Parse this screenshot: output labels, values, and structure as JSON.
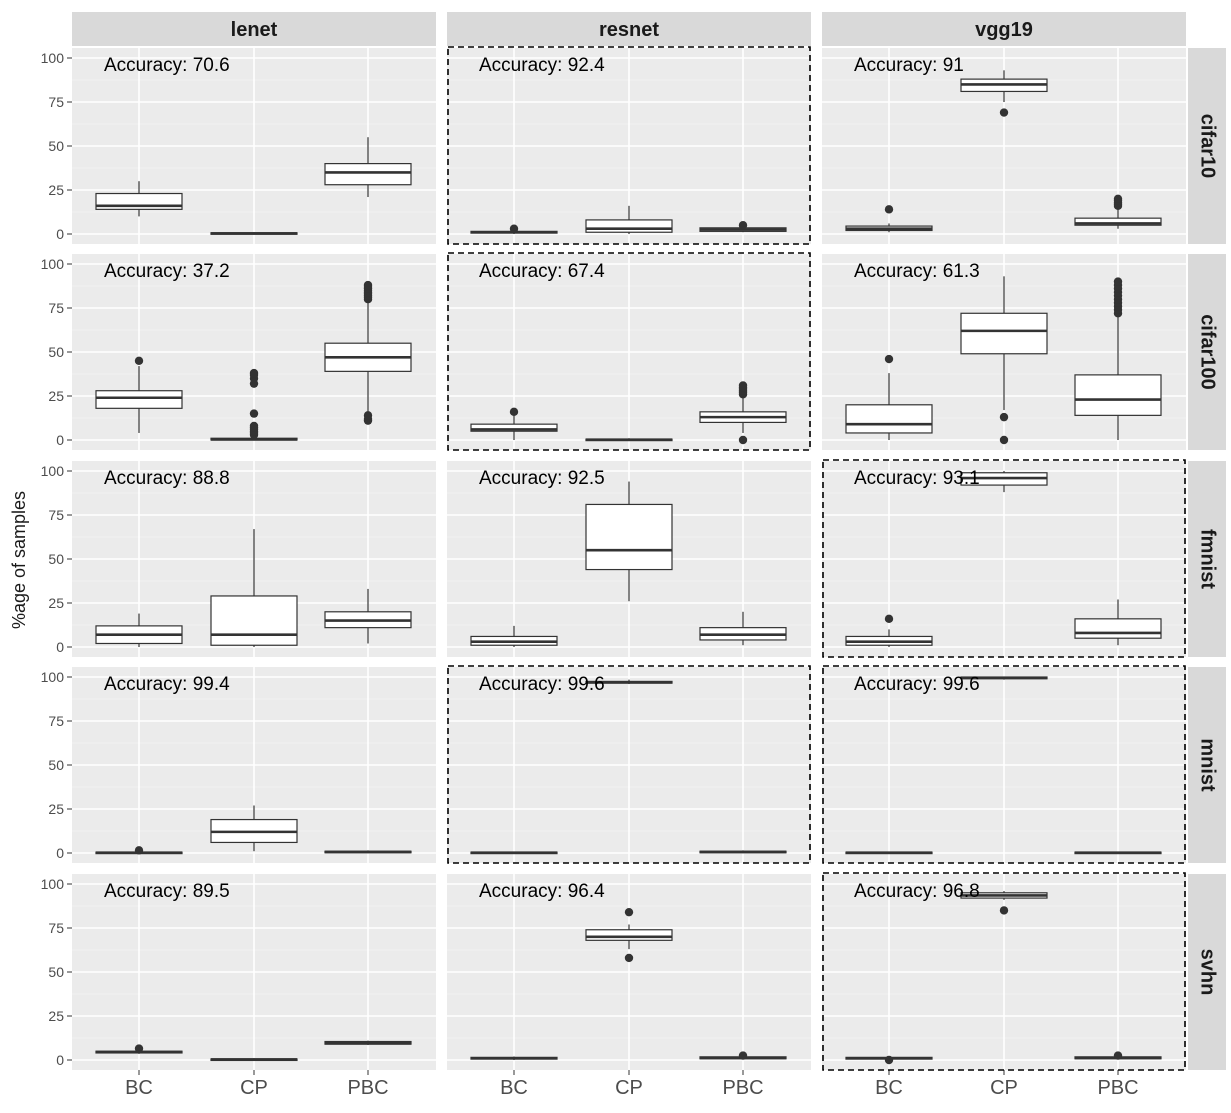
{
  "chart_data": {
    "type": "box",
    "title": "",
    "xlabel": "",
    "ylabel": "%age of samples",
    "ylim": [
      0,
      100
    ],
    "yticks": [
      "0",
      "25",
      "50",
      "75",
      "100"
    ],
    "grid": true,
    "columns": [
      "lenet",
      "resnet",
      "vgg19"
    ],
    "rows": [
      "cifar10",
      "cifar100",
      "fmnist",
      "mnist",
      "svhn"
    ],
    "categories": [
      "BC",
      "CP",
      "PBC"
    ],
    "panels": [
      {
        "row": "cifar10",
        "col": "lenet",
        "accuracy": "Accuracy: 70.6",
        "highlighted": false,
        "boxes": [
          {
            "q1": 14,
            "median": 16,
            "q3": 23,
            "low": 10,
            "high": 30,
            "outliers": []
          },
          {
            "q1": 0,
            "median": 0.3,
            "q3": 0.7,
            "low": 0,
            "high": 1,
            "outliers": []
          },
          {
            "q1": 28,
            "median": 35,
            "q3": 40,
            "low": 21,
            "high": 55,
            "outliers": []
          }
        ]
      },
      {
        "row": "cifar10",
        "col": "resnet",
        "accuracy": "Accuracy: 92.4",
        "highlighted": true,
        "boxes": [
          {
            "q1": 0.5,
            "median": 1,
            "q3": 1.5,
            "low": 0,
            "high": 2.5,
            "outliers": [
              3
            ]
          },
          {
            "q1": 1,
            "median": 3,
            "q3": 8,
            "low": 0,
            "high": 16,
            "outliers": []
          },
          {
            "q1": 1.5,
            "median": 2.5,
            "q3": 3.5,
            "low": 1,
            "high": 4.5,
            "outliers": [
              5
            ]
          }
        ]
      },
      {
        "row": "cifar10",
        "col": "vgg19",
        "accuracy": "Accuracy: 91",
        "highlighted": false,
        "boxes": [
          {
            "q1": 2,
            "median": 3,
            "q3": 4.5,
            "low": 1,
            "high": 6,
            "outliers": [
              14
            ]
          },
          {
            "q1": 81,
            "median": 85,
            "q3": 88,
            "low": 75,
            "high": 93,
            "outliers": [
              69
            ]
          },
          {
            "q1": 5,
            "median": 6,
            "q3": 9,
            "low": 3,
            "high": 14,
            "outliers": [
              16,
              17,
              18,
              19,
              20
            ]
          }
        ]
      },
      {
        "row": "cifar100",
        "col": "lenet",
        "accuracy": "Accuracy: 37.2",
        "highlighted": false,
        "boxes": [
          {
            "q1": 18,
            "median": 24,
            "q3": 28,
            "low": 4,
            "high": 42,
            "outliers": [
              45
            ]
          },
          {
            "q1": 0,
            "median": 0.3,
            "q3": 1,
            "low": 0,
            "high": 2,
            "outliers": [
              3,
              4,
              5,
              6,
              7,
              8,
              15,
              32,
              35,
              37,
              38
            ]
          },
          {
            "q1": 39,
            "median": 47,
            "q3": 55,
            "low": 16,
            "high": 79,
            "outliers": [
              11,
              12,
              14,
              80,
              81,
              82,
              83,
              84,
              85,
              86,
              87,
              88
            ]
          }
        ]
      },
      {
        "row": "cifar100",
        "col": "resnet",
        "accuracy": "Accuracy: 67.4",
        "highlighted": true,
        "boxes": [
          {
            "q1": 5,
            "median": 6,
            "q3": 9,
            "low": 0,
            "high": 14,
            "outliers": [
              16
            ]
          },
          {
            "q1": 0,
            "median": 0.2,
            "q3": 0.5,
            "low": 0,
            "high": 1,
            "outliers": []
          },
          {
            "q1": 10,
            "median": 13,
            "q3": 16,
            "low": 4,
            "high": 24,
            "outliers": [
              0,
              26,
              27,
              28,
              29,
              30,
              31
            ]
          }
        ]
      },
      {
        "row": "cifar100",
        "col": "vgg19",
        "accuracy": "Accuracy: 61.3",
        "highlighted": false,
        "boxes": [
          {
            "q1": 4,
            "median": 9,
            "q3": 20,
            "low": 0,
            "high": 38,
            "outliers": [
              46
            ]
          },
          {
            "q1": 49,
            "median": 62,
            "q3": 72,
            "low": 17,
            "high": 93,
            "outliers": [
              0,
              13
            ]
          },
          {
            "q1": 14,
            "median": 23,
            "q3": 37,
            "low": 0,
            "high": 70,
            "outliers": [
              72,
              74,
              76,
              78,
              80,
              82,
              84,
              86,
              88,
              90
            ]
          }
        ]
      },
      {
        "row": "fmnist",
        "col": "lenet",
        "accuracy": "Accuracy: 88.8",
        "highlighted": false,
        "boxes": [
          {
            "q1": 2,
            "median": 7,
            "q3": 12,
            "low": 0,
            "high": 19,
            "outliers": []
          },
          {
            "q1": 1,
            "median": 7,
            "q3": 29,
            "low": 0,
            "high": 67,
            "outliers": []
          },
          {
            "q1": 11,
            "median": 15,
            "q3": 20,
            "low": 2,
            "high": 33,
            "outliers": []
          }
        ]
      },
      {
        "row": "fmnist",
        "col": "resnet",
        "accuracy": "Accuracy: 92.5",
        "highlighted": false,
        "boxes": [
          {
            "q1": 1,
            "median": 3,
            "q3": 6,
            "low": 0,
            "high": 12,
            "outliers": []
          },
          {
            "q1": 44,
            "median": 55,
            "q3": 81,
            "low": 26,
            "high": 94,
            "outliers": []
          },
          {
            "q1": 4,
            "median": 7,
            "q3": 11,
            "low": 1,
            "high": 20,
            "outliers": []
          }
        ]
      },
      {
        "row": "fmnist",
        "col": "vgg19",
        "accuracy": "Accuracy: 93.1",
        "highlighted": true,
        "boxes": [
          {
            "q1": 1,
            "median": 3,
            "q3": 6,
            "low": 0,
            "high": 10,
            "outliers": [
              16
            ]
          },
          {
            "q1": 92,
            "median": 96,
            "q3": 99,
            "low": 88,
            "high": 100,
            "outliers": []
          },
          {
            "q1": 5,
            "median": 8,
            "q3": 16,
            "low": 1,
            "high": 27,
            "outliers": []
          }
        ]
      },
      {
        "row": "mnist",
        "col": "lenet",
        "accuracy": "Accuracy: 99.4",
        "highlighted": false,
        "boxes": [
          {
            "q1": 0,
            "median": 0.2,
            "q3": 0.5,
            "low": 0,
            "high": 1,
            "outliers": [
              1.5
            ]
          },
          {
            "q1": 6,
            "median": 12,
            "q3": 19,
            "low": 1,
            "high": 27,
            "outliers": []
          },
          {
            "q1": 0.3,
            "median": 0.6,
            "q3": 1,
            "low": 0,
            "high": 1.5,
            "outliers": []
          }
        ]
      },
      {
        "row": "mnist",
        "col": "resnet",
        "accuracy": "Accuracy: 99.6",
        "highlighted": true,
        "boxes": [
          {
            "q1": 0,
            "median": 0.2,
            "q3": 0.5,
            "low": 0,
            "high": 0.8,
            "outliers": []
          },
          {
            "q1": 96.5,
            "median": 97,
            "q3": 97.5,
            "low": 96,
            "high": 98.5,
            "outliers": []
          },
          {
            "q1": 0.3,
            "median": 0.6,
            "q3": 1,
            "low": 0,
            "high": 1.5,
            "outliers": []
          }
        ]
      },
      {
        "row": "mnist",
        "col": "vgg19",
        "accuracy": "Accuracy: 99.6",
        "highlighted": true,
        "boxes": [
          {
            "q1": 0,
            "median": 0.2,
            "q3": 0.5,
            "low": 0,
            "high": 0.8,
            "outliers": []
          },
          {
            "q1": 99,
            "median": 99.5,
            "q3": 100,
            "low": 98.5,
            "high": 100,
            "outliers": []
          },
          {
            "q1": 0,
            "median": 0.2,
            "q3": 0.5,
            "low": 0,
            "high": 0.8,
            "outliers": []
          }
        ]
      },
      {
        "row": "svhn",
        "col": "lenet",
        "accuracy": "Accuracy: 89.5",
        "highlighted": false,
        "boxes": [
          {
            "q1": 4,
            "median": 4.5,
            "q3": 5,
            "low": 3.5,
            "high": 5.5,
            "outliers": [
              6.5
            ]
          },
          {
            "q1": 0,
            "median": 0.3,
            "q3": 0.6,
            "low": 0,
            "high": 1,
            "outliers": []
          },
          {
            "q1": 9,
            "median": 9.5,
            "q3": 10.5,
            "low": 8.5,
            "high": 11,
            "outliers": []
          }
        ]
      },
      {
        "row": "svhn",
        "col": "resnet",
        "accuracy": "Accuracy: 96.4",
        "highlighted": false,
        "boxes": [
          {
            "q1": 0.5,
            "median": 1,
            "q3": 1.5,
            "low": 0,
            "high": 2,
            "outliers": []
          },
          {
            "q1": 68,
            "median": 70,
            "q3": 74,
            "low": 63,
            "high": 77,
            "outliers": [
              58,
              84
            ]
          },
          {
            "q1": 0.7,
            "median": 1.2,
            "q3": 1.8,
            "low": 0.3,
            "high": 2.2,
            "outliers": [
              2.5
            ]
          }
        ]
      },
      {
        "row": "svhn",
        "col": "vgg19",
        "accuracy": "Accuracy: 96.8",
        "highlighted": true,
        "boxes": [
          {
            "q1": 0.5,
            "median": 1,
            "q3": 1.5,
            "low": 0,
            "high": 2,
            "outliers": [
              0
            ]
          },
          {
            "q1": 92,
            "median": 93.5,
            "q3": 95,
            "low": 91,
            "high": 96,
            "outliers": [
              85
            ]
          },
          {
            "q1": 0.7,
            "median": 1.2,
            "q3": 1.8,
            "low": 0.3,
            "high": 2.2,
            "outliers": [
              2.5
            ]
          }
        ]
      }
    ]
  }
}
